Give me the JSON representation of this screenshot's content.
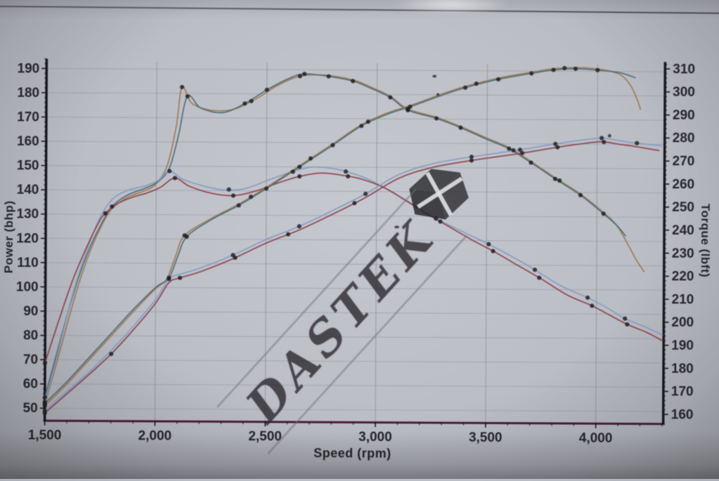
{
  "watermark": {
    "text": "DASTEK",
    "logo": "dastek-cube-logo"
  },
  "colors": {
    "axis": "#17171c",
    "baseline": "#4a1d33",
    "grid_h": "#9b9fa8",
    "grid_v": "#8c9099",
    "marker": "#1f1f24",
    "run_high_orange": "#a5794e",
    "run_high_teal": "#4a7078",
    "run_low_blue": "#7f9ec6",
    "run_low_red": "#95414a"
  },
  "chart_data": {
    "type": "line",
    "title": "",
    "xlabel": "Speed (rpm)",
    "ylabel_left": "Power (bhp)",
    "ylabel_right": "Torque (lbft)",
    "grid": true,
    "x_range": [
      1500,
      4306
    ],
    "y_left_range": [
      45,
      194
    ],
    "y_right_range": [
      156,
      313
    ],
    "x_tick_values": [
      1500,
      2000,
      2500,
      3000,
      3500,
      4000
    ],
    "x_tick_labels": [
      "1,500",
      "2,000",
      "2,500",
      "3,000",
      "3,500",
      "4,000"
    ],
    "y_left_tick_values": [
      50,
      60,
      70,
      80,
      90,
      100,
      110,
      120,
      130,
      140,
      150,
      160,
      170,
      180,
      190
    ],
    "y_left_tick_labels": [
      "50",
      "60",
      "70",
      "80",
      "90",
      "100",
      "110",
      "120",
      "130",
      "140",
      "150",
      "160",
      "170",
      "180",
      "190"
    ],
    "y_right_tick_values": [
      160,
      170,
      180,
      190,
      200,
      210,
      220,
      230,
      240,
      250,
      260,
      270,
      280,
      290,
      300,
      310
    ],
    "y_right_tick_labels": [
      "160",
      "170",
      "180",
      "190",
      "200",
      "210",
      "220",
      "230",
      "240",
      "250",
      "260",
      "270",
      "280",
      "290",
      "300",
      "310"
    ],
    "series": [
      {
        "name": "torque-run-high-orange",
        "axis": "right",
        "color_key": "run_high_orange",
        "points": [
          [
            1500,
            163
          ],
          [
            1550,
            180
          ],
          [
            1600,
            198
          ],
          [
            1650,
            215
          ],
          [
            1700,
            229
          ],
          [
            1750,
            240
          ],
          [
            1800,
            248
          ],
          [
            1870,
            253
          ],
          [
            1950,
            256
          ],
          [
            2000,
            259
          ],
          [
            2050,
            267
          ],
          [
            2090,
            284
          ],
          [
            2115,
            301
          ],
          [
            2160,
            294
          ],
          [
            2250,
            291
          ],
          [
            2350,
            291.5
          ],
          [
            2450,
            296
          ],
          [
            2550,
            302
          ],
          [
            2650,
            306
          ],
          [
            2760,
            306.5
          ],
          [
            2890,
            304.5
          ],
          [
            2970,
            301.5
          ],
          [
            3060,
            297.5
          ],
          [
            3140,
            292
          ],
          [
            3270,
            288.5
          ],
          [
            3380,
            284.5
          ],
          [
            3500,
            279.5
          ],
          [
            3600,
            275.5
          ],
          [
            3700,
            269.5
          ],
          [
            3810,
            262.5
          ],
          [
            3925,
            255.5
          ],
          [
            4030,
            247.5
          ],
          [
            4090,
            242
          ],
          [
            4140,
            234
          ],
          [
            4180,
            227
          ],
          [
            4215,
            222
          ]
        ],
        "markers": [
          1500,
          2115,
          2430,
          2650,
          3140,
          3620,
          3830
        ]
      },
      {
        "name": "torque-run-high-teal",
        "axis": "right",
        "color_key": "run_high_teal",
        "points": [
          [
            1500,
            166
          ],
          [
            1550,
            184
          ],
          [
            1600,
            202
          ],
          [
            1650,
            218
          ],
          [
            1700,
            231
          ],
          [
            1750,
            241
          ],
          [
            1800,
            249
          ],
          [
            1870,
            254
          ],
          [
            1950,
            257
          ],
          [
            2010,
            260
          ],
          [
            2060,
            266
          ],
          [
            2100,
            280
          ],
          [
            2140,
            297
          ],
          [
            2200,
            292
          ],
          [
            2300,
            290
          ],
          [
            2400,
            294
          ],
          [
            2500,
            300
          ],
          [
            2600,
            305
          ],
          [
            2670,
            307
          ],
          [
            2780,
            306
          ],
          [
            2890,
            304
          ],
          [
            2970,
            301
          ],
          [
            3060,
            297
          ],
          [
            3140,
            291.5
          ],
          [
            3270,
            288
          ],
          [
            3380,
            284
          ],
          [
            3500,
            279
          ],
          [
            3600,
            275
          ],
          [
            3700,
            269
          ],
          [
            3810,
            262
          ],
          [
            3925,
            255
          ],
          [
            4030,
            247
          ],
          [
            4090,
            242
          ],
          [
            4130,
            237.5
          ]
        ],
        "markers": [
          1500,
          1800,
          2140,
          2400,
          2500,
          2670,
          2780,
          2890,
          3060,
          3140,
          3270,
          3380,
          3600,
          3700,
          3810,
          3925,
          4030
        ]
      },
      {
        "name": "torque-run-low-blue",
        "axis": "right",
        "color_key": "run_low_blue",
        "points": [
          [
            1500,
            164
          ],
          [
            1540,
            178
          ],
          [
            1580,
            194
          ],
          [
            1630,
            213
          ],
          [
            1680,
            228
          ],
          [
            1740,
            243
          ],
          [
            1800,
            252
          ],
          [
            1870,
            256
          ],
          [
            1950,
            258
          ],
          [
            2010,
            260.5
          ],
          [
            2060,
            264.5
          ],
          [
            2120,
            261
          ],
          [
            2200,
            258.5
          ],
          [
            2300,
            256.5
          ],
          [
            2400,
            257
          ],
          [
            2500,
            260.5
          ],
          [
            2600,
            264
          ],
          [
            2700,
            266.5
          ],
          [
            2800,
            266
          ],
          [
            2870,
            264.5
          ],
          [
            2960,
            261.5
          ],
          [
            3060,
            256.5
          ],
          [
            3160,
            250.5
          ],
          [
            3270,
            244.5
          ],
          [
            3400,
            238.5
          ],
          [
            3510,
            233.5
          ],
          [
            3610,
            228.5
          ],
          [
            3720,
            222.5
          ],
          [
            3840,
            215.5
          ],
          [
            3960,
            210.5
          ],
          [
            4060,
            205.5
          ],
          [
            4130,
            201.5
          ],
          [
            4220,
            198
          ],
          [
            4300,
            194.5
          ]
        ],
        "markers": [
          1500,
          2060,
          2330,
          2620,
          2860,
          3270,
          3510,
          3720,
          3960,
          4130
        ]
      },
      {
        "name": "torque-run-low-red",
        "axis": "right",
        "color_key": "run_low_red",
        "points": [
          [
            1500,
            181
          ],
          [
            1560,
            199
          ],
          [
            1620,
            216
          ],
          [
            1680,
            230
          ],
          [
            1740,
            242
          ],
          [
            1770,
            246
          ],
          [
            1820,
            250
          ],
          [
            1890,
            253
          ],
          [
            1960,
            255
          ],
          [
            2020,
            257.5
          ],
          [
            2085,
            261.5
          ],
          [
            2150,
            258
          ],
          [
            2250,
            255
          ],
          [
            2350,
            254
          ],
          [
            2450,
            256
          ],
          [
            2550,
            259.5
          ],
          [
            2650,
            262.5
          ],
          [
            2750,
            264
          ],
          [
            2850,
            263
          ],
          [
            2930,
            261.5
          ],
          [
            3030,
            258
          ],
          [
            3130,
            252.5
          ],
          [
            3230,
            246.5
          ],
          [
            3330,
            241
          ],
          [
            3440,
            235
          ],
          [
            3540,
            230
          ],
          [
            3640,
            224.5
          ],
          [
            3750,
            218.5
          ],
          [
            3870,
            211.5
          ],
          [
            3980,
            207
          ],
          [
            4070,
            202.5
          ],
          [
            4140,
            199
          ],
          [
            4230,
            195.5
          ],
          [
            4300,
            192
          ]
        ],
        "markers": [
          1500,
          1770,
          2085,
          2350,
          2650,
          2870,
          3290,
          3530,
          3740,
          3980,
          4140
        ]
      },
      {
        "name": "power-run-high-orange",
        "axis": "left",
        "color_key": "run_high_orange",
        "points": [
          [
            1500,
            51
          ],
          [
            1600,
            60
          ],
          [
            1700,
            70
          ],
          [
            1800,
            80
          ],
          [
            1900,
            90
          ],
          [
            2000,
            99.5
          ],
          [
            2050,
            103.5
          ],
          [
            2090,
            113
          ],
          [
            2130,
            121.5
          ],
          [
            2250,
            128.5
          ],
          [
            2375,
            134.5
          ],
          [
            2500,
            141.5
          ],
          [
            2650,
            150.5
          ],
          [
            2800,
            159.5
          ],
          [
            2930,
            167.5
          ],
          [
            3050,
            172.5
          ],
          [
            3150,
            175.5
          ],
          [
            3300,
            180.5
          ],
          [
            3400,
            183.5
          ],
          [
            3550,
            187
          ],
          [
            3700,
            189.5
          ],
          [
            3800,
            191
          ],
          [
            3900,
            191.5
          ],
          [
            4000,
            191
          ],
          [
            4080,
            189.5
          ],
          [
            4120,
            187.5
          ],
          [
            4155,
            183.5
          ],
          [
            4180,
            178.5
          ],
          [
            4195,
            174.5
          ]
        ],
        "markers": [
          1500,
          2130,
          2430,
          2700,
          2960,
          3450,
          3850
        ]
      },
      {
        "name": "power-run-high-teal",
        "axis": "left",
        "color_key": "run_high_teal",
        "points": [
          [
            1500,
            52
          ],
          [
            1600,
            61
          ],
          [
            1700,
            71
          ],
          [
            1800,
            81
          ],
          [
            1900,
            91
          ],
          [
            2000,
            100
          ],
          [
            2060,
            104
          ],
          [
            2100,
            113
          ],
          [
            2140,
            121
          ],
          [
            2250,
            128
          ],
          [
            2375,
            134
          ],
          [
            2500,
            141
          ],
          [
            2650,
            150
          ],
          [
            2800,
            159
          ],
          [
            2930,
            167
          ],
          [
            3050,
            172
          ],
          [
            3150,
            175
          ],
          [
            3300,
            180
          ],
          [
            3400,
            183
          ],
          [
            3550,
            186.5
          ],
          [
            3700,
            189
          ],
          [
            3800,
            190.5
          ],
          [
            3900,
            191
          ],
          [
            4000,
            190.5
          ],
          [
            4100,
            189.5
          ],
          [
            4170,
            187.5
          ]
        ],
        "markers": [
          1500,
          2060,
          2140,
          2375,
          2500,
          2650,
          2800,
          2930,
          3150,
          3400,
          3550,
          3700,
          3800,
          3900,
          4000
        ]
      },
      {
        "name": "power-run-low-blue",
        "axis": "left",
        "color_key": "run_low_blue",
        "points": [
          [
            1500,
            49
          ],
          [
            1600,
            57
          ],
          [
            1700,
            65
          ],
          [
            1800,
            74
          ],
          [
            1900,
            84
          ],
          [
            2000,
            95
          ],
          [
            2060,
            103.5
          ],
          [
            2110,
            105.5
          ],
          [
            2200,
            108
          ],
          [
            2350,
            113.5
          ],
          [
            2500,
            120
          ],
          [
            2650,
            125.5
          ],
          [
            2800,
            132
          ],
          [
            2950,
            139
          ],
          [
            3100,
            147
          ],
          [
            3250,
            151.5
          ],
          [
            3430,
            154.5
          ],
          [
            3650,
            157.5
          ],
          [
            3810,
            160
          ],
          [
            3920,
            161.5
          ],
          [
            4020,
            162.5
          ],
          [
            4100,
            161.5
          ],
          [
            4180,
            160.5
          ],
          [
            4290,
            159.5
          ]
        ],
        "markers": [
          1500,
          2060,
          2350,
          2650,
          2950,
          3430,
          3650,
          3810,
          4020,
          4180
        ]
      },
      {
        "name": "power-run-low-red",
        "axis": "left",
        "color_key": "run_low_red",
        "points": [
          [
            1500,
            48
          ],
          [
            1600,
            56
          ],
          [
            1700,
            64
          ],
          [
            1800,
            72.5
          ],
          [
            1900,
            82.5
          ],
          [
            2000,
            93.5
          ],
          [
            2060,
            102
          ],
          [
            2110,
            104
          ],
          [
            2200,
            106.5
          ],
          [
            2350,
            112
          ],
          [
            2500,
            118.5
          ],
          [
            2650,
            124
          ],
          [
            2800,
            130.5
          ],
          [
            2950,
            137.5
          ],
          [
            3100,
            145.5
          ],
          [
            3250,
            150
          ],
          [
            3430,
            153
          ],
          [
            3650,
            156
          ],
          [
            3810,
            158.5
          ],
          [
            3920,
            160
          ],
          [
            4020,
            161
          ],
          [
            4100,
            160
          ],
          [
            4180,
            159
          ],
          [
            4280,
            157.5
          ]
        ],
        "markers": [
          1500,
          1800,
          2110,
          2360,
          2600,
          2900,
          3430,
          3660,
          3820,
          4030
        ]
      }
    ]
  }
}
